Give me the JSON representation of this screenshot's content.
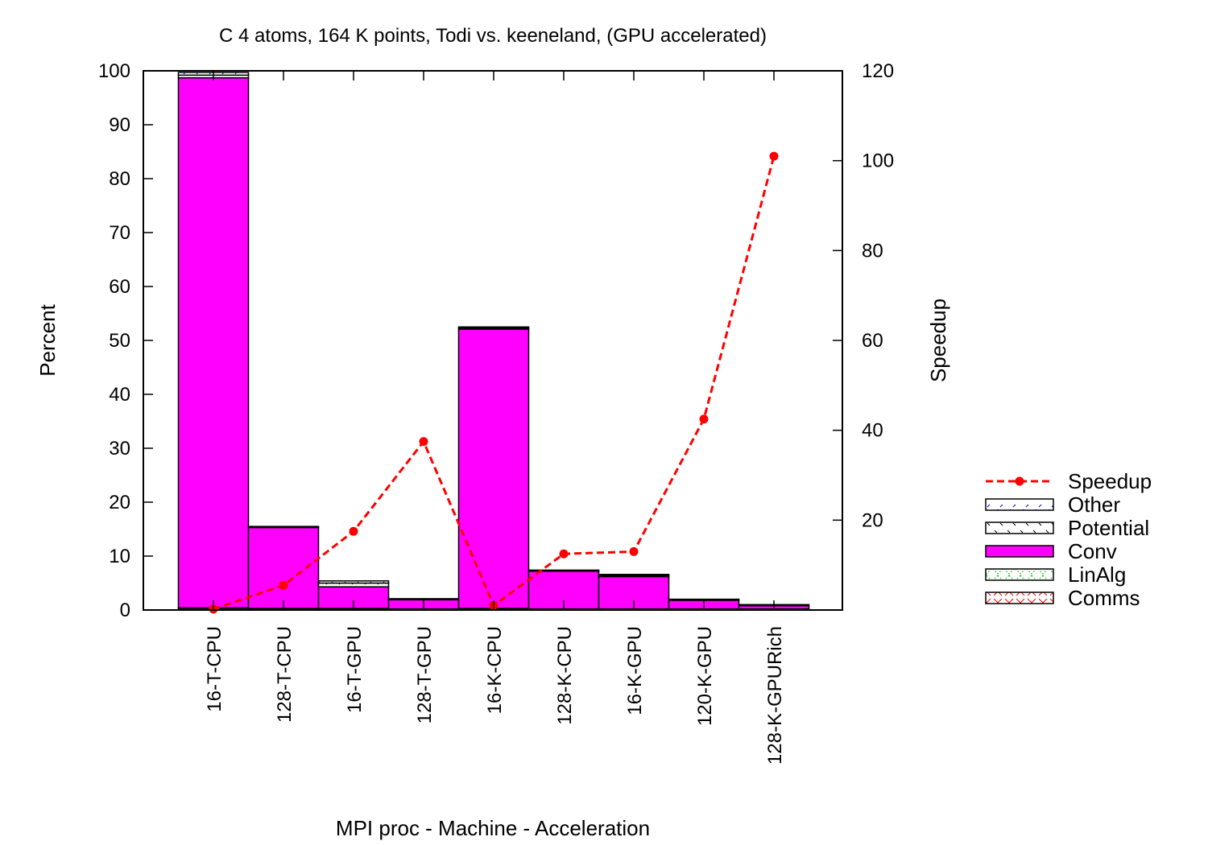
{
  "chart_data": {
    "type": "bar",
    "stacked": true,
    "title": "C 4 atoms, 164 K points, Todi vs. keeneland, (GPU accelerated)",
    "xlabel": "MPI proc - Machine - Acceleration",
    "ylabel": "Percent",
    "y2label": "Speedup",
    "ylim": [
      0,
      100
    ],
    "yticks": [
      0,
      10,
      20,
      30,
      40,
      50,
      60,
      70,
      80,
      90,
      100
    ],
    "y2lim": [
      0,
      120
    ],
    "y2ticks": [
      20,
      40,
      60,
      80,
      100,
      120
    ],
    "categories": [
      "16-T-CPU",
      "128-T-CPU",
      "16-T-GPU",
      "128-T-GPU",
      "16-K-CPU",
      "128-K-CPU",
      "16-K-GPU",
      "120-K-GPU",
      "128-K-GPURich"
    ],
    "series": [
      {
        "name": "Comms",
        "color": "#ff0000",
        "pattern": "x-hatch",
        "values": [
          0.3,
          0.2,
          0.2,
          0.1,
          0.2,
          0.1,
          0.1,
          0.1,
          0.1
        ]
      },
      {
        "name": "LinAlg",
        "color": "#00cc00",
        "pattern": "diamond-hatch",
        "values": [
          0.1,
          0.1,
          0.1,
          0.1,
          0.1,
          0.1,
          0.1,
          0.1,
          0.1
        ]
      },
      {
        "name": "Conv",
        "color": "#ff00ff",
        "pattern": "solid",
        "values": [
          98.3,
          15.0,
          4.0,
          1.7,
          51.8,
          7.0,
          6.0,
          1.6,
          0.6
        ]
      },
      {
        "name": "Potential",
        "color": "#000000",
        "pattern": "light-dash",
        "values": [
          0.5,
          0.1,
          0.7,
          0.1,
          0.2,
          0.1,
          0.2,
          0.1,
          0.1
        ]
      },
      {
        "name": "Other",
        "color": "#0000ff",
        "pattern": "slash",
        "values": [
          0.5,
          0.1,
          0.4,
          0.1,
          0.2,
          0.1,
          0.2,
          0.1,
          0.1
        ]
      }
    ],
    "line_series": {
      "name": "Speedup",
      "color": "#ff0000",
      "axis": "y2",
      "style": "dashed-with-points",
      "values": [
        0.2,
        5.5,
        17.5,
        37.5,
        1.0,
        12.5,
        13.0,
        42.5,
        101.0
      ]
    },
    "legend": {
      "placement": "right",
      "entries": [
        "Speedup",
        "Other",
        "Potential",
        "Conv",
        "LinAlg",
        "Comms"
      ]
    },
    "grid": false
  }
}
